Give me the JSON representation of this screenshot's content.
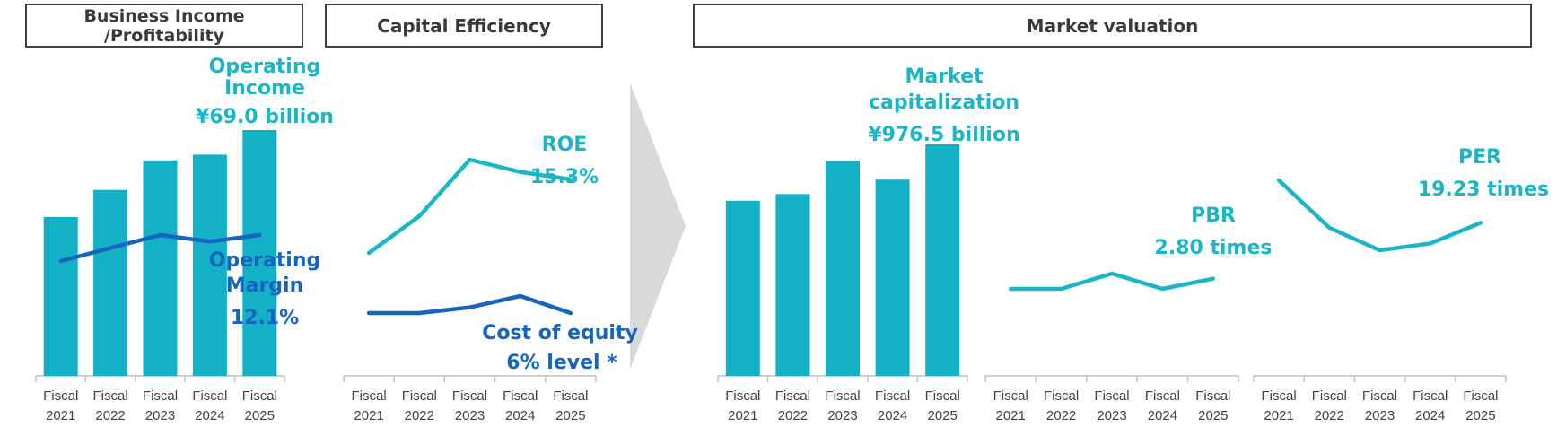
{
  "headers": {
    "business_line1": "Business Income",
    "business_line2": "/Profitability",
    "capital": "Capital Efficiency",
    "market": "Market valuation"
  },
  "colors": {
    "bar": "#14b1c6",
    "roe": "#1ab6c8",
    "blue_line": "#1565c0",
    "arrow": "#d9d9d9",
    "axis": "#bfbfbf"
  },
  "annotations": {
    "op_income_1": "Operating",
    "op_income_2": "Income",
    "op_income_3": "¥69.0 billion",
    "op_margin_1": "Operating",
    "op_margin_2": "Margin",
    "op_margin_3": "12.1%",
    "roe_1": "ROE",
    "roe_2": "15.3%",
    "coe_1": "Cost of equity",
    "coe_2": "6% level *",
    "mcap_1": "Market",
    "mcap_2": "capitalization",
    "mcap_3": "¥976.5 billion",
    "pbr_1": "PBR",
    "pbr_2": "2.80 times",
    "per_1": "PER",
    "per_2": "19.23 times"
  },
  "chart_data": [
    {
      "type": "bar",
      "id": "operating-income",
      "categories": [
        [
          "Fiscal",
          "2021"
        ],
        [
          "Fiscal",
          "2022"
        ],
        [
          "Fiscal",
          "2023"
        ],
        [
          "Fiscal",
          "2024"
        ],
        [
          "Fiscal",
          "2025"
        ]
      ],
      "series": [
        {
          "name": "Operating Income",
          "values": [
            44.6,
            52.2,
            60.5,
            62.1,
            69.0
          ]
        }
      ],
      "overlay_line": {
        "name": "Operating Margin",
        "values": [
          10.5,
          11.3,
          12.1,
          11.7,
          12.1
        ]
      }
    },
    {
      "type": "line",
      "id": "capital-efficiency",
      "categories": [
        [
          "Fiscal",
          "2021"
        ],
        [
          "Fiscal",
          "2022"
        ],
        [
          "Fiscal",
          "2023"
        ],
        [
          "Fiscal",
          "2024"
        ],
        [
          "Fiscal",
          "2025"
        ]
      ],
      "series": [
        {
          "name": "ROE",
          "values": [
            12.3,
            13.8,
            16.1,
            15.6,
            15.3
          ]
        },
        {
          "name": "Cost of equity",
          "values": [
            6.0,
            6.0,
            6.1,
            6.3,
            6.0
          ]
        }
      ]
    },
    {
      "type": "bar",
      "id": "market-capitalization",
      "categories": [
        [
          "Fiscal",
          "2021"
        ],
        [
          "Fiscal",
          "2022"
        ],
        [
          "Fiscal",
          "2023"
        ],
        [
          "Fiscal",
          "2024"
        ],
        [
          "Fiscal",
          "2025"
        ]
      ],
      "series": [
        {
          "name": "Market capitalization",
          "values": [
            739,
            767,
            908,
            828,
            976.5
          ]
        }
      ]
    },
    {
      "type": "line",
      "id": "pbr",
      "categories": [
        [
          "Fiscal",
          "2021"
        ],
        [
          "Fiscal",
          "2022"
        ],
        [
          "Fiscal",
          "2023"
        ],
        [
          "Fiscal",
          "2024"
        ],
        [
          "Fiscal",
          "2025"
        ]
      ],
      "series": [
        {
          "name": "PBR",
          "values": [
            2.7,
            2.7,
            2.85,
            2.7,
            2.8
          ]
        }
      ]
    },
    {
      "type": "line",
      "id": "per",
      "categories": [
        [
          "Fiscal",
          "2021"
        ],
        [
          "Fiscal",
          "2022"
        ],
        [
          "Fiscal",
          "2023"
        ],
        [
          "Fiscal",
          "2024"
        ],
        [
          "Fiscal",
          "2025"
        ]
      ],
      "series": [
        {
          "name": "PER",
          "values": [
            23.0,
            18.8,
            16.8,
            17.4,
            19.23
          ]
        }
      ]
    }
  ]
}
